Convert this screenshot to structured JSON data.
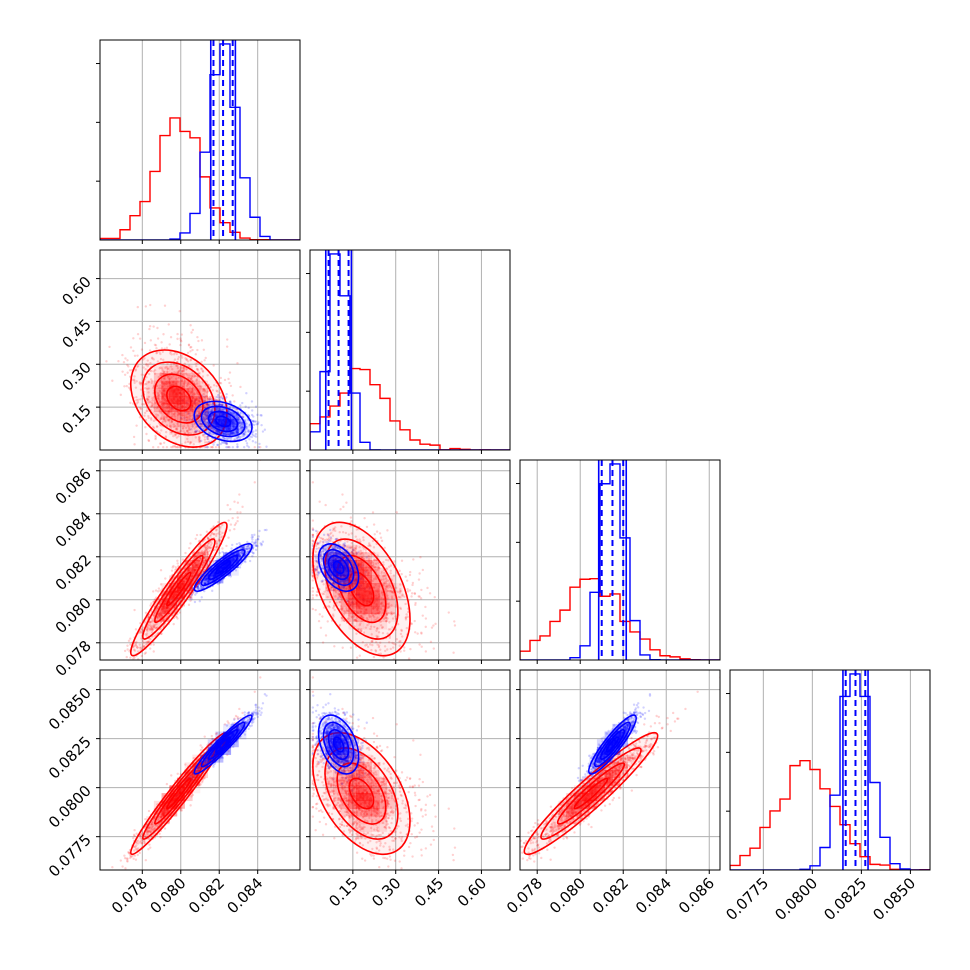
{
  "chart_data": {
    "type": "corner",
    "title": "",
    "grid": true,
    "colors": {
      "red": "#ff0000",
      "blue": "#0000ff",
      "grid": "#b0b0b0"
    },
    "parameters": [
      {
        "name": "",
        "range": [
          0.0758,
          0.0862
        ],
        "ticks": [
          0.078,
          0.08,
          0.082,
          0.084
        ],
        "tick_labels": [
          "0.078",
          "0.080",
          "0.082",
          "0.084"
        ]
      },
      {
        "name": "",
        "range": [
          0.0,
          0.7
        ],
        "ticks": [
          0.15,
          0.3,
          0.45,
          0.6
        ],
        "tick_labels": [
          "0.15",
          "0.30",
          "0.45",
          "0.60"
        ]
      },
      {
        "name": "",
        "range": [
          0.0772,
          0.0865
        ],
        "ticks": [
          0.078,
          0.08,
          0.082,
          0.084,
          0.086
        ],
        "tick_labels": [
          "0.078",
          "0.080",
          "0.082",
          "0.084",
          "0.086"
        ]
      },
      {
        "name": "",
        "range": [
          0.0758,
          0.086
        ],
        "ticks": [
          0.0775,
          0.08,
          0.0825,
          0.085
        ],
        "tick_labels": [
          "0.0775",
          "0.0800",
          "0.0825",
          "0.0850"
        ]
      }
    ],
    "series": [
      {
        "color": "red",
        "means": [
          0.0799,
          0.18,
          0.0805,
          0.0797
        ],
        "sds": [
          0.00125,
          0.085,
          0.00155,
          0.00155
        ],
        "correlations": [
          [
            1.0,
            -0.3,
            0.95,
            0.97
          ],
          [
            -0.3,
            1.0,
            -0.45,
            -0.45
          ],
          [
            0.95,
            -0.45,
            1.0,
            0.95
          ],
          [
            0.97,
            -0.45,
            0.95,
            1.0
          ]
        ]
      },
      {
        "color": "blue",
        "means": [
          0.0822,
          0.1,
          0.0815,
          0.0822
        ],
        "sds": [
          0.00075,
          0.035,
          0.00055,
          0.00075
        ],
        "correlations": [
          [
            1.0,
            -0.3,
            0.9,
            0.95
          ],
          [
            -0.3,
            1.0,
            -0.4,
            -0.4
          ],
          [
            0.9,
            -0.4,
            1.0,
            0.9
          ],
          [
            0.95,
            -0.4,
            0.9,
            1.0
          ]
        ],
        "quantiles": [
          [
            0.0817,
            0.0822,
            0.0827
          ],
          [
            0.065,
            0.1,
            0.135
          ],
          [
            0.081,
            0.0815,
            0.082
          ],
          [
            0.0817,
            0.0822,
            0.0827
          ]
        ]
      }
    ]
  }
}
